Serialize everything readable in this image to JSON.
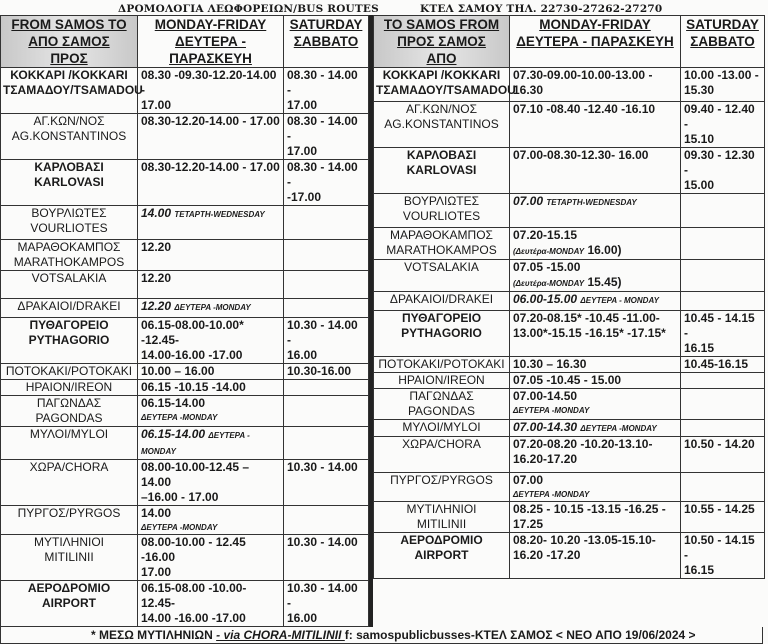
{
  "header": {
    "title_left": "ΔΡΟΜΟΛΟΓΙΑ ΛΕΩΦΟΡΕΙΩΝ/BUS ROUTES",
    "title_right": "ΚΤΕΛ ΣΑΜΟΥ  ΤΗΛ. 22730-27262-27270"
  },
  "left_table": {
    "columns": [
      [
        "FROM SAMOS TO",
        "ΑΠΟ ΣΑΜΟΣ",
        "ΠΡΟΣ"
      ],
      [
        "MONDAY-FRIDAY",
        "ΔΕΥΤΕΡΑ -  ΠΑΡΑΣΚΕΥΗ"
      ],
      [
        "SATURDAY",
        "ΣΑΒΒΑΤΟ"
      ]
    ],
    "rows": [
      {
        "place": [
          "ΚΟΚΚΑΡΙ /KOKKARI",
          "ΤΣΑΜΑΔΟΥ/TSAMADOU"
        ],
        "bold": true,
        "weekday": [
          "08.30 -09.30-12.20-14.00 -",
          "17.00"
        ],
        "saturday": [
          "08.30 - 14.00 -",
          "17.00"
        ]
      },
      {
        "place": [
          "ΑΓ.ΚΩΝ/ΝΟΣ",
          "AG.KONSTANTINOS"
        ],
        "bold": false,
        "weekday": [
          "08.30-12.20-14.00 - 17.00"
        ],
        "saturday": [
          "08.30 - 14.00 -",
          "17.00"
        ]
      },
      {
        "place": [
          "ΚΑΡΛΟΒΑΣΙ",
          "KARLOVASI"
        ],
        "bold": true,
        "weekday": [
          "08.30-12.20-14.00 - 17.00"
        ],
        "saturday": [
          "08.30 - 14.00 -",
          "-17.00"
        ]
      },
      {
        "place": [
          "ΒΟΥΡΛΙΩΤΕΣ",
          "VOURLIOTES"
        ],
        "bold": false,
        "italic": true,
        "weekday": [
          "14.00"
        ],
        "weekday_note": "ΤΕΤΑΡΤΗ-WEDNESDAY",
        "saturday": []
      },
      {
        "place": [
          "ΜΑΡΑΘΟΚΑΜΠΟΣ",
          "MARATHOKAMPOS"
        ],
        "bold": false,
        "weekday": [
          "12.20"
        ],
        "saturday": []
      },
      {
        "place": [
          "VOTSALAKIA"
        ],
        "bold": false,
        "weekday": [
          "12.20"
        ],
        "saturday": []
      },
      {
        "place": [
          "ΔΡΑΚΑΙΟΙ/DRAKEI"
        ],
        "bold": false,
        "italic": true,
        "weekday": [
          "12.20"
        ],
        "weekday_note": "ΔΕΥΤΕΡΑ -MONDAY",
        "saturday": []
      },
      {
        "place": [
          "ΠΥΘΑΓΟΡΕΙΟ",
          "PYTHAGORIO"
        ],
        "bold": true,
        "weekday": [
          "06.15-08.00-10.00* -12.45-",
          "14.00-16.00 -17.00"
        ],
        "saturday": [
          "10.30 - 14.00 -",
          "16.00"
        ]
      },
      {
        "place": [
          "ΠΟΤΟΚΑΚΙ/POTOKAKI"
        ],
        "bold": false,
        "weekday": [
          "10.00 – 16.00"
        ],
        "saturday": [
          "10.30-16.00"
        ]
      },
      {
        "place": [
          "ΗΡΑΙΟΝ/IREON"
        ],
        "bold": false,
        "weekday": [
          "06.15 -10.15 -14.00"
        ],
        "saturday": []
      },
      {
        "place": [
          "ΠΑΓΩΝΔΑΣ",
          "PAGONDAS"
        ],
        "bold": false,
        "weekday": [
          "06.15-14.00"
        ],
        "weekday_note_line": "ΔΕΥΤΕΡΑ -MONDAY",
        "saturday": []
      },
      {
        "place": [
          "ΜΥΛΟΙ/MYLOI"
        ],
        "bold": false,
        "italic": true,
        "small": true,
        "weekday": [
          "06.15-14.00"
        ],
        "weekday_note": "ΔΕΥΤΕΡΑ -MONDAY",
        "saturday": []
      },
      {
        "place": [
          "ΧΩΡΑ/CHORA"
        ],
        "bold": false,
        "weekday": [
          "08.00-10.00-12.45 – 14.00",
          "–16.00 - 17.00"
        ],
        "saturday": [
          "10.30 - 14.00"
        ]
      },
      {
        "place": [
          "ΠΥΡΓΟΣ/PYRGOS"
        ],
        "bold": false,
        "weekday": [
          "14.00"
        ],
        "weekday_note_line": "ΔΕΥΤΕΡΑ -MONDAY",
        "saturday": []
      },
      {
        "place": [
          "ΜΥΤΙΛΗΝΙΟΙ",
          "MITILINII"
        ],
        "bold": false,
        "weekday": [
          "08.00-10.00 - 12.45 -16.00",
          "17.00"
        ],
        "saturday": [
          "10.30 - 14.00"
        ]
      },
      {
        "place": [
          "ΑΕΡΟΔΡΟΜΙΟ",
          "AIRPORT"
        ],
        "bold": true,
        "weekday": [
          "06.15-08.00 -10.00-12.45-",
          "14.00 -16.00 -17.00"
        ],
        "saturday": [
          "10.30 - 14.00 -",
          "16.00"
        ]
      }
    ]
  },
  "right_table": {
    "columns": [
      [
        "TO SAMOS FROM",
        "ΠΡΟΣ ΣΑΜΟΣ",
        "ΑΠΟ"
      ],
      [
        "MONDAY-FRIDAY",
        "ΔΕΥΤΕΡΑ - ΠΑΡΑΣΚΕΥΗ"
      ],
      [
        "SATURDAY",
        "ΣΑΒΒΑΤΟ"
      ]
    ],
    "rows": [
      {
        "place": [
          "ΚΟΚΚΑΡΙ /KOKKARI",
          "ΤΣΑΜΑΔΟΥ/TSAMADOU"
        ],
        "bold": true,
        "weekday": [
          "07.30-09.00-10.00-13.00 -",
          "16.30"
        ],
        "saturday": [
          "10.00  -13.00 -",
          "15.30"
        ]
      },
      {
        "place": [
          "ΑΓ.ΚΩΝ/ΝΟΣ",
          "AG.KONSTANTINOS"
        ],
        "bold": false,
        "weekday": [
          "07.10 -08.40 -12.40 -16.10"
        ],
        "saturday": [
          "09.40 - 12.40 -",
          "15.10"
        ]
      },
      {
        "place": [
          "ΚΑΡΛΟΒΑΣΙ",
          "KARLOVASI"
        ],
        "bold": true,
        "weekday": [
          "07.00-08.30-12.30- 16.00"
        ],
        "saturday": [
          "09.30 - 12.30 -",
          "15.00"
        ]
      },
      {
        "place": [
          "ΒΟΥΡΛΙΩΤΕΣ",
          "VOURLIOTES"
        ],
        "bold": false,
        "italic": true,
        "weekday": [
          "07.00"
        ],
        "weekday_note": "ΤΕΤΑΡΤΗ-WEDNESDAY",
        "saturday": []
      },
      {
        "place": [
          "ΜΑΡΑΘΟΚΑΜΠΟΣ",
          "MARATHOKAMPOS"
        ],
        "bold": false,
        "weekday": [
          "07.20-15.15"
        ],
        "weekday_paren": [
          "(Δευτέρα-MONDAY",
          " 16.00)"
        ],
        "saturday": []
      },
      {
        "place": [
          "VOTSALAKIA"
        ],
        "bold": false,
        "weekday": [
          "07.05 -15.00"
        ],
        "weekday_paren": [
          "(Δευτέρα-MONDAY",
          " 15.45)"
        ],
        "saturday": []
      },
      {
        "place": [
          "ΔΡΑΚΑΙΟΙ/DRAKEI"
        ],
        "bold": false,
        "italic": true,
        "weekday": [
          "06.00-15.00"
        ],
        "weekday_note": "ΔΕΥΤΕΡΑ - MONDAY",
        "saturday": []
      },
      {
        "place": [
          "ΠΥΘΑΓΟΡΕΙΟ",
          "PYTHAGORIO"
        ],
        "bold": true,
        "weekday": [
          "07.20-08.15* -10.45 -11.00-",
          "13.00*-15.15 -16.15* -17.15*"
        ],
        "saturday": [
          "10.45 - 14.15 -",
          "16.15"
        ]
      },
      {
        "place": [
          "ΠΟΤΟΚΑΚΙ/POTOKAKI"
        ],
        "bold": false,
        "weekday": [
          "10.30 – 16.30"
        ],
        "saturday": [
          "10.45-16.15"
        ]
      },
      {
        "place": [
          "ΗΡΑΙΟΝ/IREON"
        ],
        "bold": false,
        "weekday": [
          "07.05 -10.45 - 15.00"
        ],
        "saturday": []
      },
      {
        "place": [
          "ΠΑΓΩΝΔΑΣ",
          "PAGONDAS"
        ],
        "bold": false,
        "weekday": [
          "07.00-14.50"
        ],
        "weekday_note_line": "ΔΕΥΤΕΡΑ -MONDAY",
        "saturday": []
      },
      {
        "place": [
          "ΜΥΛΟΙ/MYLOI"
        ],
        "bold": false,
        "italic": true,
        "weekday": [
          "07.00-14.30"
        ],
        "weekday_note": "ΔΕΥΤΕΡΑ -MONDAY",
        "saturday": []
      },
      {
        "place": [
          "ΧΩΡΑ/CHORA"
        ],
        "bold": false,
        "weekday": [
          "07.20-08.20 -10.20-13.10-",
          "16.20-17.20"
        ],
        "saturday": [
          "10.50 - 14.20"
        ]
      },
      {
        "place": [
          "ΠΥΡΓΟΣ/PYRGOS"
        ],
        "bold": false,
        "weekday": [
          "07.00"
        ],
        "weekday_note_line": "ΔΕΥΤΕΡΑ -MONDAY",
        "saturday": []
      },
      {
        "place": [
          "ΜΥΤΙΛΗΝΙΟΙ",
          "MITILINII"
        ],
        "bold": false,
        "weekday": [
          "08.25 - 10.15 -13.15 -16.25 -",
          "17.25"
        ],
        "saturday": [
          "10.55 - 14.25"
        ]
      },
      {
        "place": [
          "ΑΕΡΟΔΡΟΜΙΟ",
          "AIRPORT"
        ],
        "bold": true,
        "weekday": [
          "08.20- 10.20 -13.05-15.10-",
          "16.20  -17.20"
        ],
        "saturday": [
          "10.50 - 14.15 -",
          "16.15"
        ]
      }
    ]
  },
  "footer": {
    "prefix": "* ΜΕΣΩ ΜΥΤΙΛΗΝΙΩΝ ",
    "via": "- via CHORA-MITILINII ",
    "suffix": " f: samospublicbusses-ΚΤΕΛ ΣΑΜΟΣ < ΝΕΟ  ΑΠΟ 19/06/2024 >"
  }
}
